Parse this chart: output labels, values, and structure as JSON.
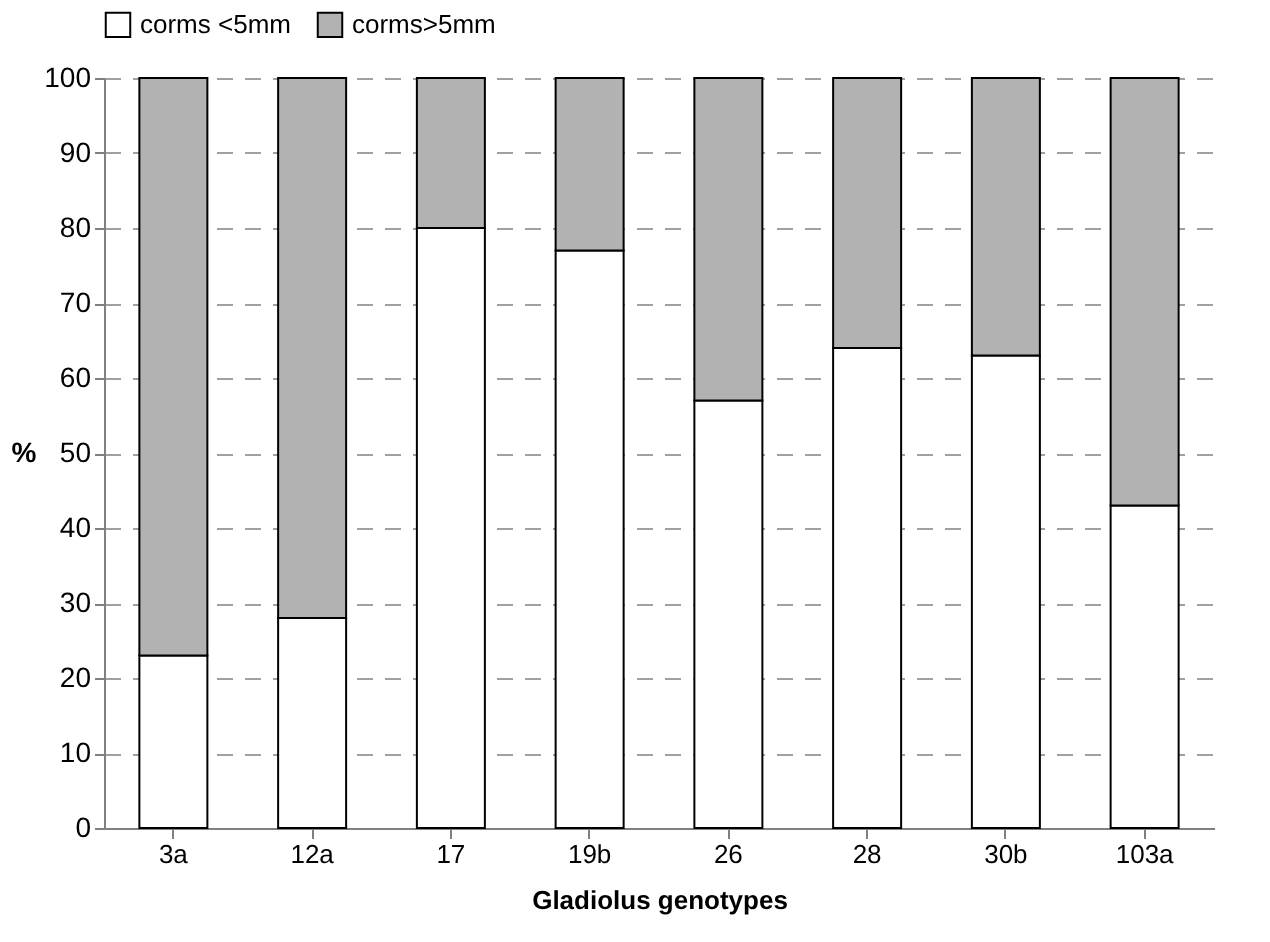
{
  "chart_data": {
    "type": "bar",
    "stacked": true,
    "xlabel": "Gladiolus genotypes",
    "ylabel": "%",
    "categories": [
      "3a",
      "12a",
      "17",
      "19b",
      "26",
      "28",
      "30b",
      "103a"
    ],
    "series": [
      {
        "name": "corms <5mm",
        "color": "#ffffff",
        "values": [
          23,
          28,
          80,
          77,
          57,
          64,
          63,
          43
        ]
      },
      {
        "name": "corms>5mm",
        "color": "#b2b2b2",
        "values": [
          77,
          72,
          20,
          23,
          43,
          36,
          37,
          57
        ]
      }
    ],
    "ylim": [
      0,
      100
    ],
    "yticks": [
      0,
      10,
      20,
      30,
      40,
      50,
      60,
      70,
      80,
      90,
      100
    ],
    "grid": "y",
    "legend": "top"
  }
}
